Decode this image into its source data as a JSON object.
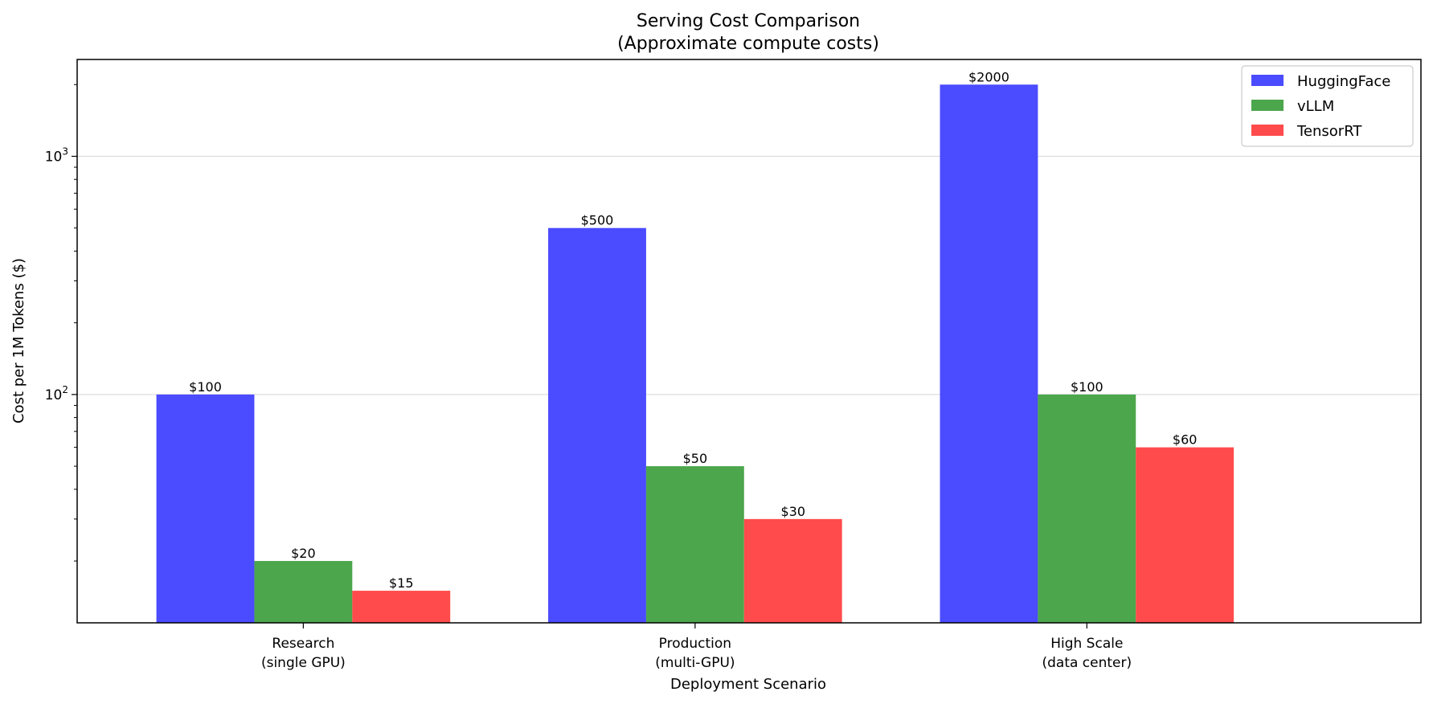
{
  "chart_data": {
    "type": "bar",
    "title": "Serving Cost Comparison",
    "subtitle": "(Approximate compute costs)",
    "xlabel": "Deployment Scenario",
    "ylabel": "Cost per 1M Tokens ($)",
    "yscale": "log",
    "ylim": [
      11,
      2550
    ],
    "yticks": [
      100,
      1000
    ],
    "grid": "horizontal major",
    "legend_position": "top-right",
    "categories": [
      [
        "Research",
        "(single GPU)"
      ],
      [
        "Production",
        "(multi-GPU)"
      ],
      [
        "High Scale",
        "(data center)"
      ]
    ],
    "series": [
      {
        "name": "HuggingFace",
        "color": "#4b4bff",
        "values": [
          100,
          500,
          2000
        ],
        "labels": [
          "$100",
          "$500",
          "$2000"
        ]
      },
      {
        "name": "vLLM",
        "color": "#4ca64c",
        "values": [
          20,
          50,
          100
        ],
        "labels": [
          "$20",
          "$50",
          "$100"
        ]
      },
      {
        "name": "TensorRT",
        "color": "#ff4b4b",
        "values": [
          15,
          30,
          60
        ],
        "labels": [
          "$15",
          "$30",
          "$60"
        ]
      }
    ]
  }
}
